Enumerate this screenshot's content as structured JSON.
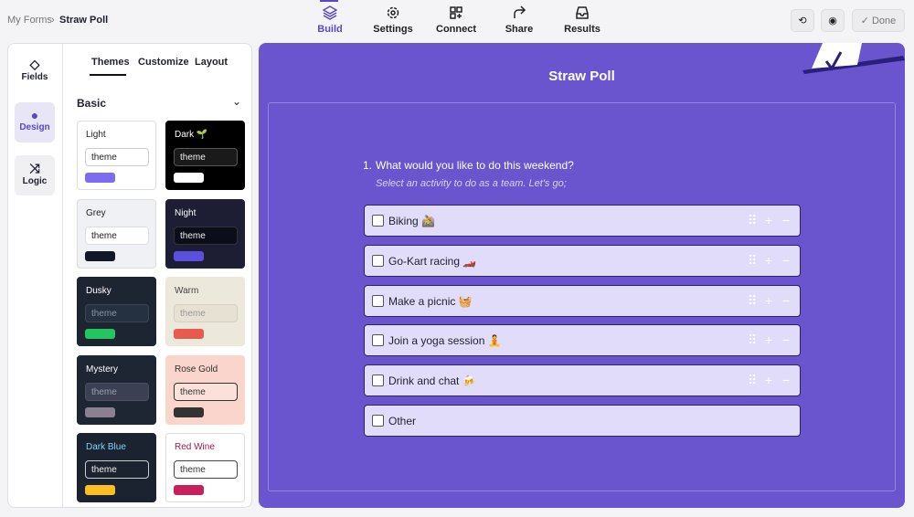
{
  "header": {
    "breadcrumb": [
      "My Forms",
      "Straw Poll"
    ],
    "nav": [
      "Build",
      "Settings",
      "Connect",
      "Share",
      "Results"
    ],
    "done": "Done"
  },
  "sidebar": {
    "items": [
      "Fields",
      "Design",
      "Logic"
    ]
  },
  "tabs": [
    "Themes",
    "Customize",
    "Layout"
  ],
  "section": {
    "title": "Basic"
  },
  "themes": [
    {
      "name": "Light",
      "input": "theme"
    },
    {
      "name": "Dark 🌱",
      "input": "theme"
    },
    {
      "name": "Grey",
      "input": "theme"
    },
    {
      "name": "Night",
      "input": "theme"
    },
    {
      "name": "Dusky",
      "input": "theme"
    },
    {
      "name": "Warm",
      "input": "theme"
    },
    {
      "name": "Mystery",
      "input": "theme"
    },
    {
      "name": "Rose Gold",
      "input": "theme"
    },
    {
      "name": "Dark Blue",
      "input": "theme"
    },
    {
      "name": "Red Wine",
      "input": "theme"
    }
  ],
  "form": {
    "title": "Straw Poll",
    "question": {
      "number": "1.",
      "text": "What would you like to do this weekend?",
      "subtitle": "Select an activity to do as a team. Let's go;",
      "options": [
        "Biking 🚵",
        "Go-Kart racing 🏎️",
        "Make a picnic 🧺",
        "Join a yoga session 🧘",
        "Drink and chat 🍻",
        "Other"
      ]
    }
  }
}
